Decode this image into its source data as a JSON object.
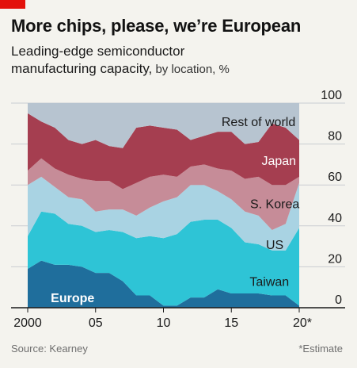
{
  "header": {
    "title": "More chips, please, we’re European",
    "subtitle_main": "Leading-edge semiconductor",
    "subtitle_line2": "manufacturing capacity,",
    "subtitle_unit": " by location, %"
  },
  "footer": {
    "source": "Source: Kearney",
    "note": "*Estimate"
  },
  "chart_data": {
    "type": "area",
    "stacked": true,
    "x": [
      2000,
      2001,
      2002,
      2003,
      2004,
      2005,
      2006,
      2007,
      2008,
      2009,
      2010,
      2011,
      2012,
      2013,
      2014,
      2015,
      2016,
      2017,
      2018,
      2019,
      2020
    ],
    "ylim": [
      0,
      100
    ],
    "yticks": [
      0,
      20,
      40,
      60,
      80,
      100
    ],
    "xticks": [
      {
        "value": 2000,
        "label": "2000"
      },
      {
        "value": 2005,
        "label": "05"
      },
      {
        "value": 2010,
        "label": "10"
      },
      {
        "value": 2015,
        "label": "15"
      },
      {
        "value": 2020,
        "label": "20*"
      }
    ],
    "grid": true,
    "series": [
      {
        "name": "Europe",
        "color": "#1f6e9c",
        "label_color": "#ffffff",
        "label_at": [
          2001.7,
          5
        ],
        "values": [
          19,
          23,
          21,
          21,
          20,
          17,
          17,
          13,
          6,
          6,
          1,
          1,
          5,
          5,
          9,
          7,
          7,
          7,
          6,
          6,
          1
        ]
      },
      {
        "name": "Taiwan",
        "color": "#2ec4d6",
        "label_color": "#1a1a1a",
        "label_at": [
          2017.8,
          13
        ],
        "values": [
          16,
          24,
          25,
          20,
          20,
          20,
          21,
          24,
          28,
          29,
          33,
          35,
          37,
          38,
          34,
          32,
          25,
          24,
          22,
          22,
          38
        ]
      },
      {
        "name": "US",
        "color": "#a9d3e3",
        "label_color": "#1a1a1a",
        "label_at": [
          2018.2,
          31
        ],
        "values": [
          25,
          17,
          13,
          13,
          13,
          10,
          10,
          11,
          11,
          14,
          18,
          18,
          18,
          17,
          14,
          14,
          15,
          14,
          10,
          13,
          22
        ]
      },
      {
        "name": "S. Korea",
        "color": "#c68c98",
        "label_color": "#1a1a1a",
        "label_at": [
          2018.2,
          51
        ],
        "values": [
          7,
          9,
          9,
          11,
          10,
          15,
          14,
          10,
          16,
          15,
          13,
          10,
          9,
          10,
          11,
          14,
          16,
          19,
          22,
          19,
          3
        ]
      },
      {
        "name": "Japan",
        "color": "#a53e50",
        "label_color": "#ffffff",
        "label_at": [
          2018.5,
          72
        ],
        "values": [
          28,
          18,
          20,
          17,
          17,
          20,
          17,
          20,
          27,
          25,
          23,
          23,
          13,
          14,
          18,
          19,
          17,
          17,
          30,
          28,
          18
        ]
      },
      {
        "name": "Rest of world",
        "color": "#b7c4d0",
        "label_color": "#1a1a1a",
        "label_at": [
          2017,
          91
        ],
        "values": [
          5,
          9,
          12,
          18,
          20,
          18,
          21,
          22,
          12,
          11,
          12,
          13,
          18,
          16,
          14,
          14,
          20,
          19,
          10,
          12,
          18
        ]
      }
    ]
  }
}
